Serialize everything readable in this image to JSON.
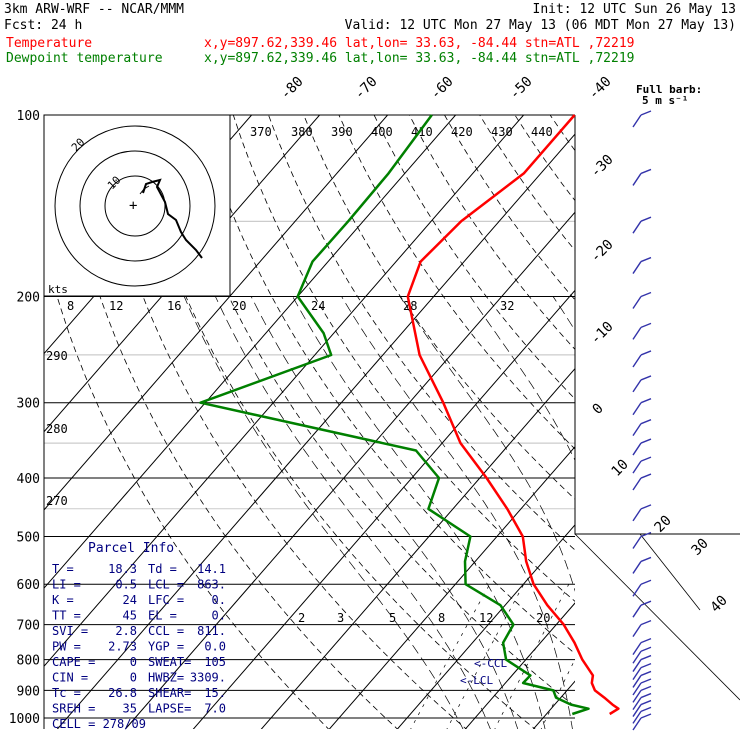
{
  "header": {
    "line1_left": "3km ARW-WRF -- NCAR/MMM",
    "line1_right": "Init: 12 UTC Sun 26 May 13",
    "line2_left": "Fcst:    24 h",
    "line2_right": "Valid: 12 UTC Mon 27 May 13 (06 MDT Mon 27 May 13)",
    "legend": [
      {
        "name": "Temperature",
        "info": "x,y=897.62,339.46   lat,lon= 33.63, -84.44   stn=ATL ,72219",
        "color": "#ff0000"
      },
      {
        "name": "Dewpoint temperature",
        "info": "x,y=897.62,339.46   lat,lon= 33.63, -84.44   stn=ATL ,72219",
        "color": "#008000"
      }
    ]
  },
  "barb_legend": {
    "line1": "Full barb:",
    "line2": "5 m s⁻¹"
  },
  "hodograph": {
    "rings": [
      10,
      20,
      30
    ],
    "ring_labels": [
      "10",
      "20"
    ],
    "kts_label": "kts"
  },
  "parcel_info": {
    "title": "Parcel Info",
    "rows": [
      {
        "k1": "T  =",
        "v1": "18.3",
        "k2": "Td =",
        "v2": "14.1"
      },
      {
        "k1": "LI =",
        "v1": "0.5",
        "k2": "LCL =",
        "v2": "863."
      },
      {
        "k1": "K  =",
        "v1": "24",
        "k2": "LFC =",
        "v2": "0."
      },
      {
        "k1": "TT =",
        "v1": "45",
        "k2": "EL  =",
        "v2": "0."
      },
      {
        "k1": "SVI =",
        "v1": "2.8",
        "k2": "CCL =",
        "v2": "811."
      },
      {
        "k1": "PW =",
        "v1": "2.73",
        "k2": "YGP =",
        "v2": "0.0"
      },
      {
        "k1": "CAPE =",
        "v1": "0",
        "k2": "SWEAT=",
        "v2": "105"
      },
      {
        "k1": "CIN =",
        "v1": "0",
        "k2": "HWBZ=",
        "v2": "3309."
      },
      {
        "k1": "Tc =",
        "v1": "26.8",
        "k2": "SHEAR=",
        "v2": "15."
      },
      {
        "k1": "SREH =",
        "v1": "35",
        "k2": "LAPSE=",
        "v2": "7.0"
      },
      {
        "k1": "CELL = 278/09",
        "v1": "",
        "k2": "",
        "v2": ""
      }
    ]
  },
  "annotations": {
    "ccl": "<-CCL",
    "lcl": "<-LCL"
  },
  "colors": {
    "temperature": "#ff0000",
    "dewpoint": "#008000",
    "barbs": "#3333aa",
    "grid": "#000000",
    "text_blue": "#000080"
  },
  "chart_data": {
    "type": "skew-t",
    "y_axis": "pressure (hPa)",
    "yscale": "log",
    "pressure_ticks": [
      100,
      200,
      300,
      400,
      500,
      600,
      700,
      800,
      900,
      1000
    ],
    "temperature_ticks": [
      -80,
      -70,
      -60,
      -50,
      -40,
      -30,
      -20,
      -10,
      0,
      10,
      20,
      30,
      40
    ],
    "theta_labels": [
      370,
      380,
      390,
      400,
      410,
      420,
      430,
      440
    ],
    "theta_dry_labels": [
      290,
      280,
      270
    ],
    "mixing_ratio_labels": [
      2,
      3,
      5,
      8,
      12,
      20
    ],
    "wind_speed_labels": [
      8,
      12,
      16,
      20,
      24,
      28,
      32
    ],
    "series": [
      {
        "name": "Temperature",
        "color": "#ff0000",
        "points": [
          [
            985,
            19.3
          ],
          [
            965,
            19.9
          ],
          [
            950,
            18.5
          ],
          [
            925,
            16.4
          ],
          [
            900,
            14.1
          ],
          [
            875,
            12.7
          ],
          [
            850,
            11.9
          ],
          [
            800,
            8.3
          ],
          [
            750,
            5.0
          ],
          [
            700,
            1.1
          ],
          [
            650,
            -3.8
          ],
          [
            600,
            -8.5
          ],
          [
            550,
            -12.5
          ],
          [
            500,
            -16.2
          ],
          [
            450,
            -22.0
          ],
          [
            400,
            -29.0
          ],
          [
            350,
            -37.3
          ],
          [
            300,
            -45.0
          ],
          [
            250,
            -54.6
          ],
          [
            200,
            -63.8
          ],
          [
            175,
            -66.4
          ],
          [
            150,
            -65.6
          ],
          [
            125,
            -62.5
          ],
          [
            100,
            -62.5
          ]
        ]
      },
      {
        "name": "Dewpoint temperature",
        "color": "#008000",
        "points": [
          [
            985,
            13.8
          ],
          [
            965,
            15.5
          ],
          [
            950,
            12.4
          ],
          [
            925,
            9.3
          ],
          [
            900,
            8.0
          ],
          [
            875,
            2.6
          ],
          [
            850,
            2.7
          ],
          [
            800,
            -2.9
          ],
          [
            750,
            -5.5
          ],
          [
            700,
            -6.3
          ],
          [
            650,
            -10.7
          ],
          [
            600,
            -18.5
          ],
          [
            550,
            -21.5
          ],
          [
            500,
            -23.9
          ],
          [
            450,
            -33.6
          ],
          [
            400,
            -36.0
          ],
          [
            360,
            -42.9
          ],
          [
            300,
            -80.7
          ],
          [
            250,
            -67.6
          ],
          [
            230,
            -71.5
          ],
          [
            200,
            -80.0
          ],
          [
            175,
            -82.3
          ],
          [
            150,
            -82.2
          ],
          [
            125,
            -82.4
          ],
          [
            100,
            -83.5
          ]
        ]
      }
    ],
    "ccl_hpa": 811,
    "lcl_hpa": 863,
    "wind_barb_pressures": [
      1000,
      975,
      950,
      925,
      900,
      875,
      850,
      825,
      800,
      775,
      750,
      700,
      650,
      600,
      550,
      500,
      450,
      400,
      375,
      350,
      325,
      300,
      275,
      250,
      225,
      200,
      175,
      150,
      125,
      100
    ]
  }
}
